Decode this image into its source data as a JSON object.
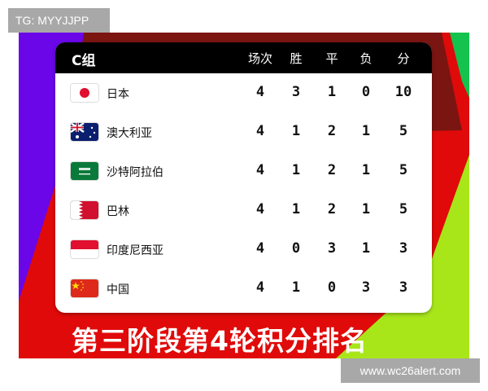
{
  "watermark_top": "TG: MYYJJPP",
  "watermark_bottom": "www.wc26alert.com",
  "table": {
    "group": "C组",
    "headers": [
      "场次",
      "胜",
      "平",
      "负",
      "分"
    ],
    "rows": [
      {
        "team": "日本",
        "flag": "japan-flag-icon",
        "values": [
          "4",
          "3",
          "1",
          "0",
          "10"
        ]
      },
      {
        "team": "澳大利亚",
        "flag": "australia-flag-icon",
        "values": [
          "4",
          "1",
          "2",
          "1",
          "5"
        ]
      },
      {
        "team": "沙特阿拉伯",
        "flag": "saudi-arabia-flag-icon",
        "values": [
          "4",
          "1",
          "2",
          "1",
          "5"
        ]
      },
      {
        "team": "巴林",
        "flag": "bahrain-flag-icon",
        "values": [
          "4",
          "1",
          "2",
          "1",
          "5"
        ]
      },
      {
        "team": "印度尼西亚",
        "flag": "indonesia-flag-icon",
        "values": [
          "4",
          "0",
          "3",
          "1",
          "3"
        ]
      },
      {
        "team": "中国",
        "flag": "china-flag-icon",
        "values": [
          "4",
          "1",
          "0",
          "3",
          "3"
        ]
      }
    ]
  },
  "caption": "第三阶段第4轮积分排名",
  "colors": {
    "red": "#e00a0a",
    "dark_red": "#7a1512",
    "purple": "#6a06e8",
    "lime": "#a8e61a",
    "green": "#14c24e"
  }
}
